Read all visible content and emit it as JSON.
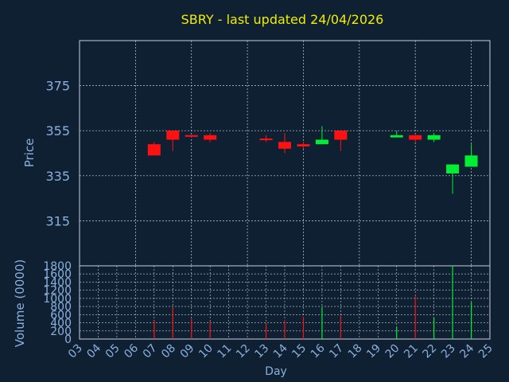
{
  "title": "SBRY - last updated 24/04/2026",
  "chart_data": [
    {
      "type": "candlestick",
      "ylabel": "Price",
      "ylim": [
        295,
        395
      ],
      "yticks": [
        315,
        335,
        355,
        375
      ],
      "grid": true,
      "up_color": "#00ee33",
      "down_color": "#ff1111",
      "candles": [
        {
          "day": "07",
          "open": 349,
          "high": 350,
          "low": 344,
          "close": 344
        },
        {
          "day": "08",
          "open": 355,
          "high": 355,
          "low": 346,
          "close": 351
        },
        {
          "day": "09",
          "open": 353,
          "high": 353,
          "low": 352,
          "close": 352.5
        },
        {
          "day": "10",
          "open": 353,
          "high": 354,
          "low": 350,
          "close": 351
        },
        {
          "day": "13",
          "open": 351.5,
          "high": 353,
          "low": 350,
          "close": 351
        },
        {
          "day": "14",
          "open": 350,
          "high": 354,
          "low": 345,
          "close": 347
        },
        {
          "day": "15",
          "open": 349,
          "high": 350,
          "low": 347,
          "close": 348
        },
        {
          "day": "16",
          "open": 349,
          "high": 357,
          "low": 349,
          "close": 351
        },
        {
          "day": "17",
          "open": 355,
          "high": 355,
          "low": 346,
          "close": 351
        },
        {
          "day": "20",
          "open": 352,
          "high": 355,
          "low": 352,
          "close": 353
        },
        {
          "day": "21",
          "open": 353,
          "high": 353,
          "low": 350,
          "close": 351
        },
        {
          "day": "22",
          "open": 351,
          "high": 354,
          "low": 350,
          "close": 353
        },
        {
          "day": "23",
          "open": 336,
          "high": 340,
          "low": 327,
          "close": 340
        },
        {
          "day": "24",
          "open": 339,
          "high": 349,
          "low": 339,
          "close": 344
        }
      ]
    },
    {
      "type": "bar",
      "ylabel": "Volume (0000)",
      "xlabel": "Day",
      "ylim": [
        0,
        1800
      ],
      "yticks": [
        0,
        200,
        400,
        600,
        800,
        1000,
        1200,
        1400,
        1600,
        1800
      ],
      "categories": [
        "03",
        "04",
        "05",
        "06",
        "07",
        "08",
        "09",
        "10",
        "11",
        "12",
        "13",
        "14",
        "15",
        "16",
        "17",
        "18",
        "19",
        "20",
        "21",
        "22",
        "23",
        "24",
        "25"
      ],
      "volumes": [
        {
          "day": "07",
          "value": 450,
          "direction": "down"
        },
        {
          "day": "08",
          "value": 780,
          "direction": "down"
        },
        {
          "day": "09",
          "value": 500,
          "direction": "down"
        },
        {
          "day": "10",
          "value": 430,
          "direction": "down"
        },
        {
          "day": "13",
          "value": 380,
          "direction": "down"
        },
        {
          "day": "14",
          "value": 470,
          "direction": "down"
        },
        {
          "day": "15",
          "value": 550,
          "direction": "down"
        },
        {
          "day": "16",
          "value": 780,
          "direction": "up"
        },
        {
          "day": "17",
          "value": 570,
          "direction": "down"
        },
        {
          "day": "20",
          "value": 300,
          "direction": "up"
        },
        {
          "day": "21",
          "value": 1050,
          "direction": "down"
        },
        {
          "day": "22",
          "value": 520,
          "direction": "up"
        },
        {
          "day": "23",
          "value": 1800,
          "direction": "up"
        },
        {
          "day": "24",
          "value": 900,
          "direction": "up"
        }
      ]
    }
  ],
  "colors": {
    "background": "#102033",
    "title": "#eeee00",
    "axis_text": "#8ab0dd",
    "grid": "#c8d0dc",
    "frame": "#c8d0dc"
  }
}
